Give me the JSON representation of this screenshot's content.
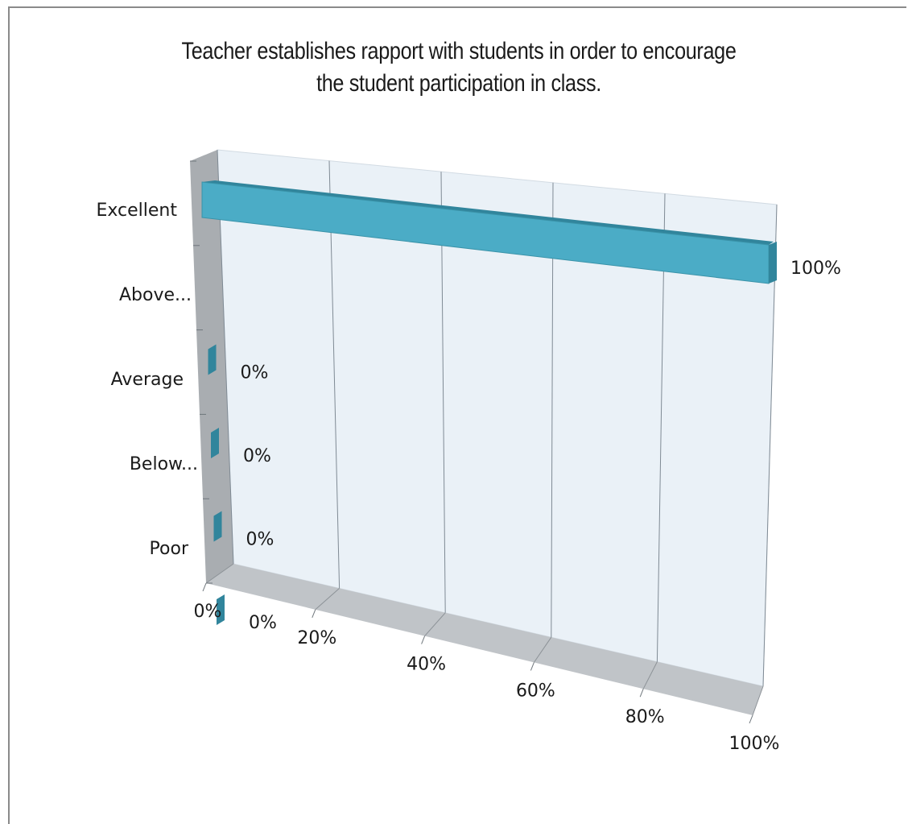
{
  "chart_data": {
    "type": "bar",
    "orientation": "horizontal",
    "style": "3d",
    "title": "Teacher establishes rapport with students in order to encourage the student participation in class.",
    "categories": [
      "Excellent",
      "Above...",
      "Average",
      "Below...",
      "Poor"
    ],
    "values": [
      100,
      0,
      0,
      0,
      0
    ],
    "value_labels": [
      "",
      "0%",
      "0%",
      "0%",
      "0%"
    ],
    "end_label": "100%",
    "xlim": [
      0,
      100
    ],
    "x_ticks": [
      "0%",
      "20%",
      "40%",
      "60%",
      "80%",
      "100%"
    ],
    "grid": true,
    "legend": "none",
    "bar_color": "#4bacc6",
    "bar_side_color": "#31859c"
  }
}
